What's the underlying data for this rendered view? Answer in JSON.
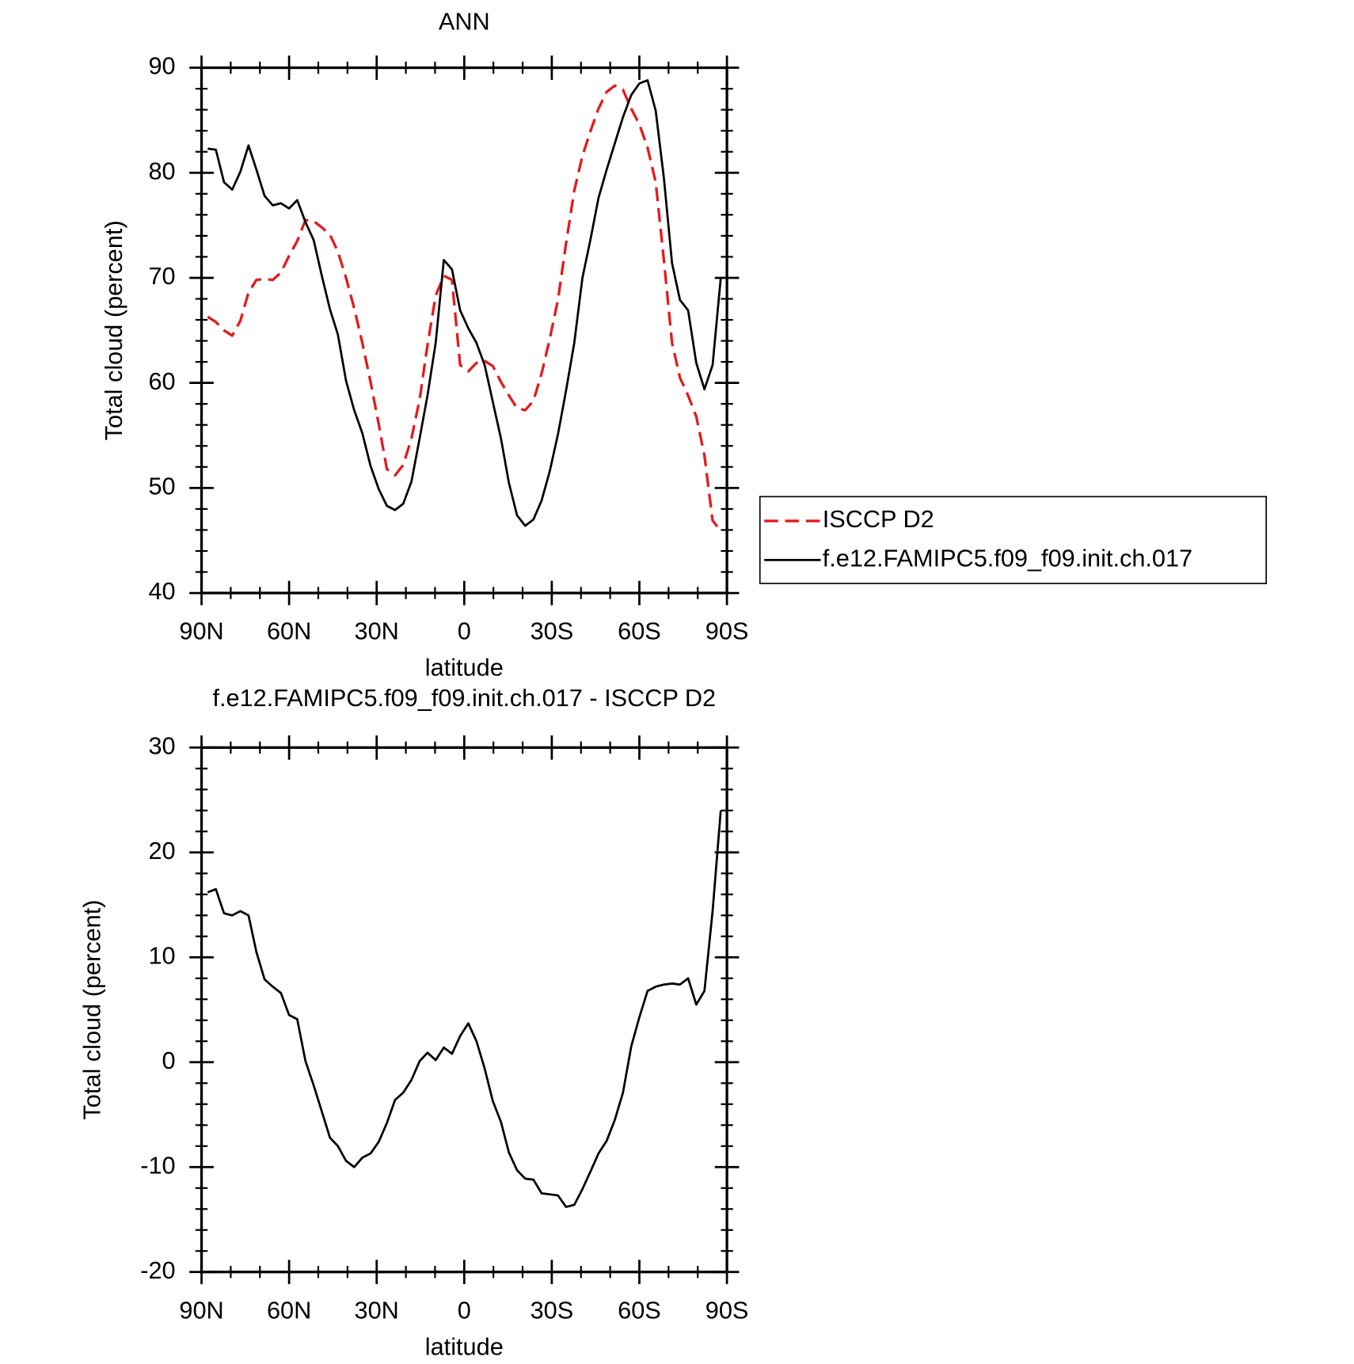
{
  "chart_data": [
    {
      "type": "line",
      "title": "ANN",
      "x_label": "latitude",
      "y_label": "Total cloud (percent)",
      "x": [
        87.9,
        85.1,
        82.3,
        79.5,
        76.7,
        73.9,
        71.2,
        68.4,
        65.6,
        62.8,
        60.0,
        57.2,
        54.4,
        51.6,
        48.8,
        46.0,
        43.3,
        40.5,
        37.7,
        34.9,
        32.1,
        29.3,
        26.5,
        23.7,
        20.9,
        18.1,
        15.3,
        12.6,
        9.8,
        7.0,
        4.2,
        1.4,
        -1.4,
        -4.2,
        -7.0,
        -9.8,
        -12.6,
        -15.3,
        -18.1,
        -20.9,
        -23.7,
        -26.5,
        -29.3,
        -32.1,
        -34.9,
        -37.7,
        -40.5,
        -43.3,
        -46.0,
        -48.8,
        -51.6,
        -54.4,
        -57.2,
        -60.0,
        -62.8,
        -65.6,
        -68.4,
        -71.2,
        -73.9,
        -76.7,
        -79.5,
        -82.3,
        -85.1,
        -87.9
      ],
      "series": [
        {
          "name": "ISCCP D2",
          "color": "#e41a1c",
          "dashed": true,
          "values": [
            66.3,
            65.8,
            65.0,
            64.5,
            65.9,
            68.6,
            69.8,
            69.9,
            69.8,
            70.5,
            72.1,
            73.5,
            75.5,
            75.4,
            74.8,
            74.1,
            72.5,
            70.0,
            67.1,
            63.8,
            60.1,
            56.1,
            51.8,
            51.2,
            52.2,
            54.7,
            58.4,
            63.6,
            68.3,
            70.2,
            69.8,
            61.7,
            61.1,
            61.9,
            62.1,
            61.6,
            60.1,
            58.8,
            57.6,
            57.4,
            58.3,
            60.9,
            64.2,
            67.9,
            73.3,
            78.3,
            81.6,
            84.0,
            86.1,
            87.7,
            88.3,
            87.9,
            86.1,
            84.6,
            82.4,
            79.1,
            71.7,
            63.8,
            60.5,
            58.8,
            56.8,
            53.1,
            46.9,
            45.9
          ]
        },
        {
          "name": "f.e12.FAMIPC5.f09_f09.init.ch.017",
          "color": "#000000",
          "dashed": false,
          "values": [
            82.3,
            82.2,
            79.1,
            78.4,
            80.1,
            82.6,
            80.3,
            77.8,
            76.9,
            77.1,
            76.6,
            77.4,
            75.3,
            73.6,
            70.2,
            67.0,
            64.6,
            60.2,
            57.4,
            55.2,
            52.1,
            49.9,
            48.3,
            47.9,
            48.5,
            50.6,
            54.7,
            58.8,
            63.8,
            71.7,
            70.8,
            66.9,
            65.2,
            63.8,
            61.7,
            58.2,
            54.7,
            50.5,
            47.4,
            46.4,
            47.0,
            48.8,
            51.6,
            55.1,
            59.3,
            63.8,
            70.0,
            73.7,
            77.6,
            80.3,
            82.8,
            85.3,
            87.4,
            88.5,
            88.8,
            85.9,
            79.5,
            71.4,
            67.9,
            66.9,
            61.9,
            59.4,
            61.7,
            70.0
          ]
        }
      ],
      "xlim": [
        90,
        -90
      ],
      "xticks": [
        {
          "value": 90,
          "label": "90N"
        },
        {
          "value": 60,
          "label": "60N"
        },
        {
          "value": 30,
          "label": "30N"
        },
        0,
        {
          "value": -30,
          "label": "30S"
        },
        {
          "value": -60,
          "label": "60S"
        },
        {
          "value": -90,
          "label": "90S"
        }
      ],
      "ylim": [
        40,
        90
      ],
      "yticks": [
        40,
        50,
        60,
        70,
        80,
        90
      ],
      "legend": "outside-right"
    },
    {
      "type": "line",
      "title": "f.e12.FAMIPC5.f09_f09.init.ch.017 - ISCCP D2",
      "x_label": "latitude",
      "y_label": "Total cloud (percent)",
      "x": [
        87.9,
        85.1,
        82.3,
        79.5,
        76.7,
        73.9,
        71.2,
        68.4,
        65.6,
        62.8,
        60.0,
        57.2,
        54.4,
        51.6,
        48.8,
        46.0,
        43.3,
        40.5,
        37.7,
        34.9,
        32.1,
        29.3,
        26.5,
        23.7,
        20.9,
        18.1,
        15.3,
        12.6,
        9.8,
        7.0,
        4.2,
        1.4,
        -1.4,
        -4.2,
        -7.0,
        -9.8,
        -12.6,
        -15.3,
        -18.1,
        -20.9,
        -23.7,
        -26.5,
        -29.3,
        -32.1,
        -34.9,
        -37.7,
        -40.5,
        -43.3,
        -46.0,
        -48.8,
        -51.6,
        -54.4,
        -57.2,
        -60.0,
        -62.8,
        -65.6,
        -68.4,
        -71.2,
        -73.9,
        -76.7,
        -79.5,
        -82.3,
        -85.1,
        -87.9
      ],
      "series": [
        {
          "color": "#000000",
          "dashed": false,
          "values": [
            16.2,
            16.5,
            14.2,
            14.0,
            14.4,
            14.0,
            10.5,
            7.9,
            7.2,
            6.6,
            4.5,
            4.1,
            0.1,
            -2.2,
            -4.7,
            -7.2,
            -8.0,
            -9.4,
            -10.0,
            -9.1,
            -8.7,
            -7.6,
            -5.8,
            -3.6,
            -2.9,
            -1.7,
            0.1,
            0.9,
            0.2,
            1.4,
            0.8,
            2.5,
            3.7,
            2.0,
            -0.6,
            -3.7,
            -5.7,
            -8.6,
            -10.3,
            -11.1,
            -11.2,
            -12.5,
            -12.6,
            -12.7,
            -13.8,
            -13.6,
            -12.1,
            -10.4,
            -8.7,
            -7.5,
            -5.5,
            -2.9,
            1.5,
            4.3,
            6.8,
            7.2,
            7.4,
            7.5,
            7.4,
            8.0,
            5.5,
            6.8,
            14.4,
            24.0
          ]
        }
      ],
      "xlim": [
        90,
        -90
      ],
      "xticks": [
        {
          "value": 90,
          "label": "90N"
        },
        {
          "value": 60,
          "label": "60N"
        },
        {
          "value": 30,
          "label": "30N"
        },
        0,
        {
          "value": -30,
          "label": "30S"
        },
        {
          "value": -60,
          "label": "60S"
        },
        {
          "value": -90,
          "label": "90S"
        }
      ],
      "ylim": [
        -20,
        30
      ],
      "yticks": [
        -20,
        -10,
        0,
        10,
        20,
        30
      ]
    }
  ]
}
